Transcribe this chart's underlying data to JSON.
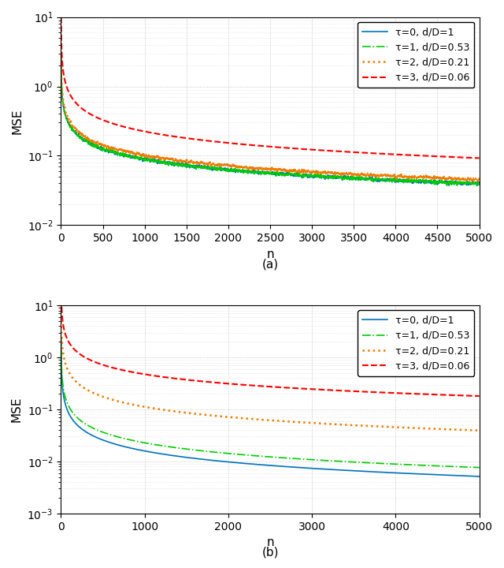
{
  "n_points": 5000,
  "subplot_a": {
    "ylim": [
      0.01,
      10
    ],
    "yticks": [
      0.01,
      0.1,
      1,
      10
    ],
    "xticks": [
      0,
      500,
      1000,
      1500,
      2000,
      2500,
      3000,
      3500,
      4000,
      4500,
      5000
    ],
    "xlabel": "n",
    "ylabel": "MSE",
    "label": "(a)",
    "series": [
      {
        "label": "τ=0, d/D=1",
        "color": "#0072BD",
        "ls": "-",
        "lw": 1.2,
        "A": 2.8,
        "exp": 0.5,
        "noise_std": 0.06,
        "noise_decay": 300
      },
      {
        "label": "τ=1, d/D=0.53",
        "color": "#00CC00",
        "ls": "-.",
        "lw": 1.2,
        "A": 2.8,
        "exp": 0.5,
        "noise_std": 0.06,
        "noise_decay": 300
      },
      {
        "label": "τ=2, d/D=0.21",
        "color": "#EF7C00",
        "ls": ":",
        "lw": 1.8,
        "A": 3.2,
        "exp": 0.5,
        "noise_std": 0.05,
        "noise_decay": 350
      },
      {
        "label": "τ=3, d/D=0.06",
        "color": "#FF0000",
        "ls": "--",
        "lw": 1.5,
        "A": 10.0,
        "exp": 0.55,
        "noise_std": 0.0,
        "noise_decay": 0
      }
    ]
  },
  "subplot_b": {
    "ylim": [
      0.001,
      10
    ],
    "yticks": [
      0.001,
      0.01,
      0.1,
      1,
      10
    ],
    "xticks": [
      0,
      1000,
      2000,
      3000,
      4000,
      5000
    ],
    "xlabel": "n",
    "ylabel": "MSE",
    "label": "(b)",
    "series": [
      {
        "label": "τ=0, d/D=1",
        "color": "#0072BD",
        "ls": "-",
        "lw": 1.2,
        "A": 2.0,
        "exp": 0.7,
        "noise_std": 0.0,
        "noise_decay": 0
      },
      {
        "label": "τ=1, d/D=0.53",
        "color": "#00CC00",
        "ls": "-.",
        "lw": 1.2,
        "A": 2.5,
        "exp": 0.68,
        "noise_std": 0.0,
        "noise_decay": 0
      },
      {
        "label": "τ=2, d/D=0.21",
        "color": "#EF7C00",
        "ls": ":",
        "lw": 1.8,
        "A": 10.0,
        "exp": 0.65,
        "noise_std": 0.0,
        "noise_decay": 0
      },
      {
        "label": "τ=3, d/D=0.06",
        "color": "#FF0000",
        "ls": "--",
        "lw": 1.5,
        "A": 30.0,
        "exp": 0.6,
        "noise_std": 0.0,
        "noise_decay": 0
      }
    ]
  },
  "bg": "#ffffff",
  "grid_color": "#aaaaaa",
  "legend_fs": 9,
  "axis_fs": 11,
  "tick_fs": 10,
  "sublabel_fs": 11
}
